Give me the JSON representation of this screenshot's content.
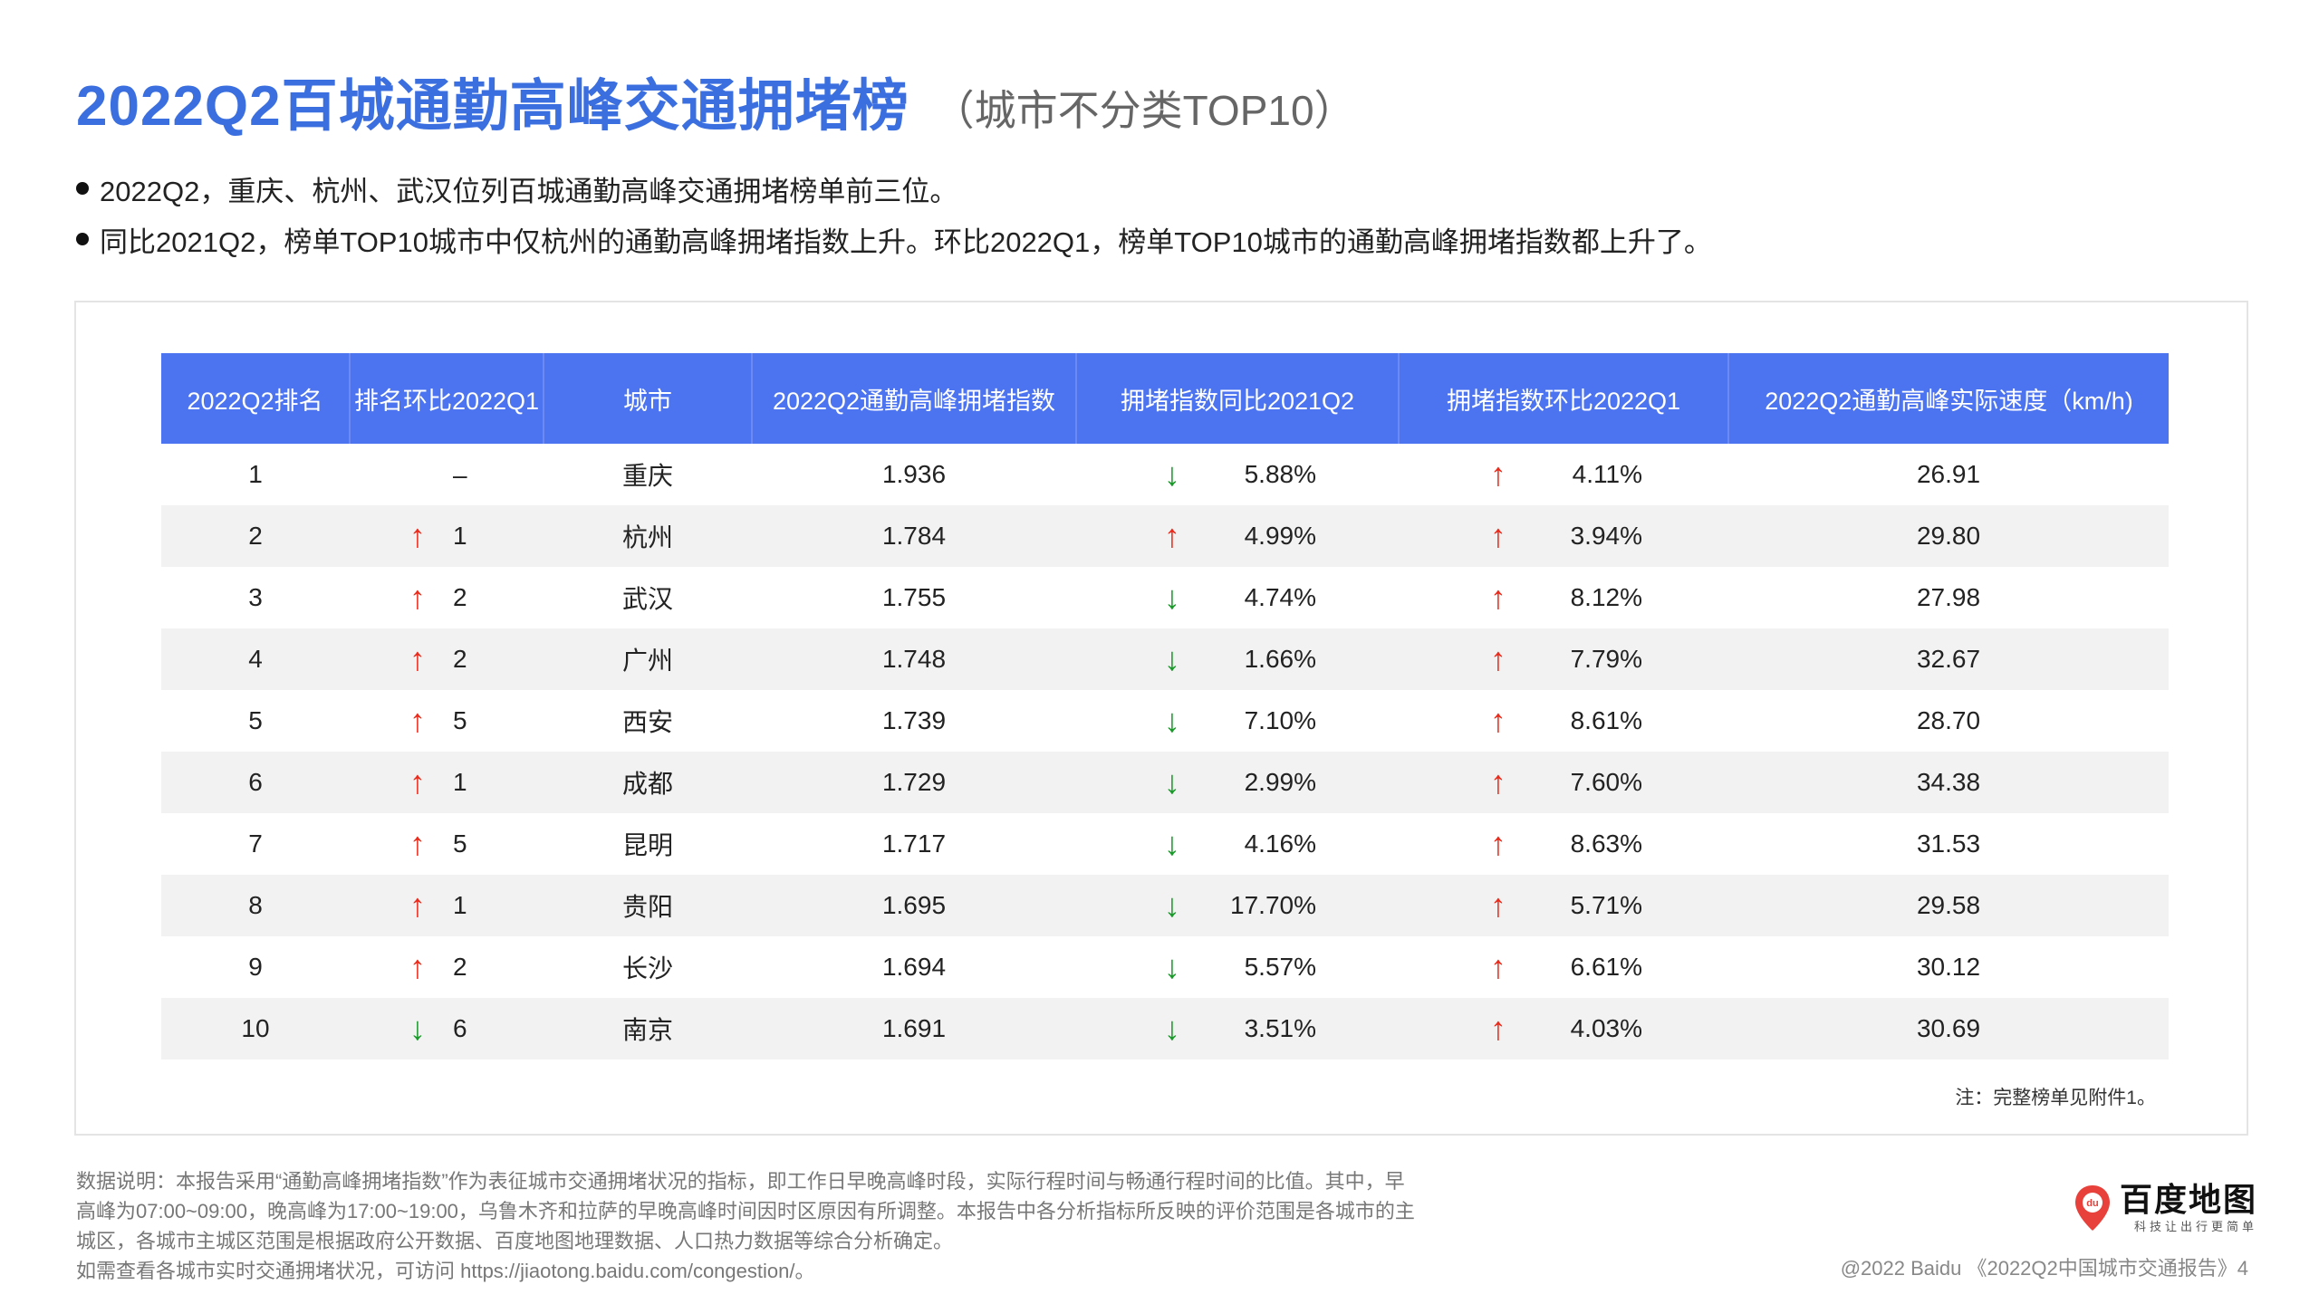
{
  "header": {
    "title": "2022Q2百城通勤高峰交通拥堵榜",
    "subtitle": "（城市不分类TOP10）"
  },
  "bullets": [
    "2022Q2，重庆、杭州、武汉位列百城通勤高峰交通拥堵榜单前三位。",
    "同比2021Q2，榜单TOP10城市中仅杭州的通勤高峰拥堵指数上升。环比2022Q1，榜单TOP10城市的通勤高峰拥堵指数都上升了。"
  ],
  "colors": {
    "accent": "#3b6fe0",
    "header_bg": "#4d74f0",
    "up": "#ea2a1a",
    "down": "#1a9a2a"
  },
  "table": {
    "headers": [
      "2022Q2排名",
      "排名环比2022Q1",
      "城市",
      "2022Q2通勤高峰拥堵指数",
      "拥堵指数同比2021Q2",
      "拥堵指数环比2022Q1",
      "2022Q2通勤高峰实际速度（km/h)"
    ],
    "rows": [
      {
        "rank": "1",
        "change_dir": "none",
        "change_arrow": "",
        "change": "–",
        "city": "重庆",
        "index": "1.936",
        "yoy_dir": "down",
        "yoy_arrow": "↓",
        "yoy": "5.88%",
        "qoq_dir": "up",
        "qoq_arrow": "↑",
        "qoq": "4.11%",
        "speed": "26.91"
      },
      {
        "rank": "2",
        "change_dir": "up",
        "change_arrow": "↑",
        "change": "1",
        "city": "杭州",
        "index": "1.784",
        "yoy_dir": "up",
        "yoy_arrow": "↑",
        "yoy": "4.99%",
        "qoq_dir": "up",
        "qoq_arrow": "↑",
        "qoq": "3.94%",
        "speed": "29.80"
      },
      {
        "rank": "3",
        "change_dir": "up",
        "change_arrow": "↑",
        "change": "2",
        "city": "武汉",
        "index": "1.755",
        "yoy_dir": "down",
        "yoy_arrow": "↓",
        "yoy": "4.74%",
        "qoq_dir": "up",
        "qoq_arrow": "↑",
        "qoq": "8.12%",
        "speed": "27.98"
      },
      {
        "rank": "4",
        "change_dir": "up",
        "change_arrow": "↑",
        "change": "2",
        "city": "广州",
        "index": "1.748",
        "yoy_dir": "down",
        "yoy_arrow": "↓",
        "yoy": "1.66%",
        "qoq_dir": "up",
        "qoq_arrow": "↑",
        "qoq": "7.79%",
        "speed": "32.67"
      },
      {
        "rank": "5",
        "change_dir": "up",
        "change_arrow": "↑",
        "change": "5",
        "city": "西安",
        "index": "1.739",
        "yoy_dir": "down",
        "yoy_arrow": "↓",
        "yoy": "7.10%",
        "qoq_dir": "up",
        "qoq_arrow": "↑",
        "qoq": "8.61%",
        "speed": "28.70"
      },
      {
        "rank": "6",
        "change_dir": "up",
        "change_arrow": "↑",
        "change": "1",
        "city": "成都",
        "index": "1.729",
        "yoy_dir": "down",
        "yoy_arrow": "↓",
        "yoy": "2.99%",
        "qoq_dir": "up",
        "qoq_arrow": "↑",
        "qoq": "7.60%",
        "speed": "34.38"
      },
      {
        "rank": "7",
        "change_dir": "up",
        "change_arrow": "↑",
        "change": "5",
        "city": "昆明",
        "index": "1.717",
        "yoy_dir": "down",
        "yoy_arrow": "↓",
        "yoy": "4.16%",
        "qoq_dir": "up",
        "qoq_arrow": "↑",
        "qoq": "8.63%",
        "speed": "31.53"
      },
      {
        "rank": "8",
        "change_dir": "up",
        "change_arrow": "↑",
        "change": "1",
        "city": "贵阳",
        "index": "1.695",
        "yoy_dir": "down",
        "yoy_arrow": "↓",
        "yoy": "17.70%",
        "qoq_dir": "up",
        "qoq_arrow": "↑",
        "qoq": "5.71%",
        "speed": "29.58"
      },
      {
        "rank": "9",
        "change_dir": "up",
        "change_arrow": "↑",
        "change": "2",
        "city": "长沙",
        "index": "1.694",
        "yoy_dir": "down",
        "yoy_arrow": "↓",
        "yoy": "5.57%",
        "qoq_dir": "up",
        "qoq_arrow": "↑",
        "qoq": "6.61%",
        "speed": "30.12"
      },
      {
        "rank": "10",
        "change_dir": "down",
        "change_arrow": "↓",
        "change": "6",
        "city": "南京",
        "index": "1.691",
        "yoy_dir": "down",
        "yoy_arrow": "↓",
        "yoy": "3.51%",
        "qoq_dir": "up",
        "qoq_arrow": "↑",
        "qoq": "4.03%",
        "speed": "30.69"
      }
    ],
    "note": "注：完整榜单见附件1。"
  },
  "footnote": [
    "数据说明：本报告采用“通勤高峰拥堵指数”作为表征城市交通拥堵状况的指标，即工作日早晚高峰时段，实际行程时间与畅通行程时间的比值。其中，早",
    "高峰为07:00~09:00，晚高峰为17:00~19:00，乌鲁木齐和拉萨的早晚高峰时间因时区原因有所调整。本报告中各分析指标所反映的评价范围是各城市的主",
    "城区，各城市主城区范围是根据政府公开数据、百度地图地理数据、人口热力数据等综合分析确定。",
    "如需查看各城市实时交通拥堵状况，可访问 https://jiaotong.baidu.com/congestion/。"
  ],
  "logo": {
    "icon": "baidu-map-pin-icon",
    "pin_text": "du",
    "name": "百度地图",
    "tagline": "科技让出行更简单"
  },
  "copyright": "@2022 Baidu 《2022Q2中国城市交通报告》4"
}
